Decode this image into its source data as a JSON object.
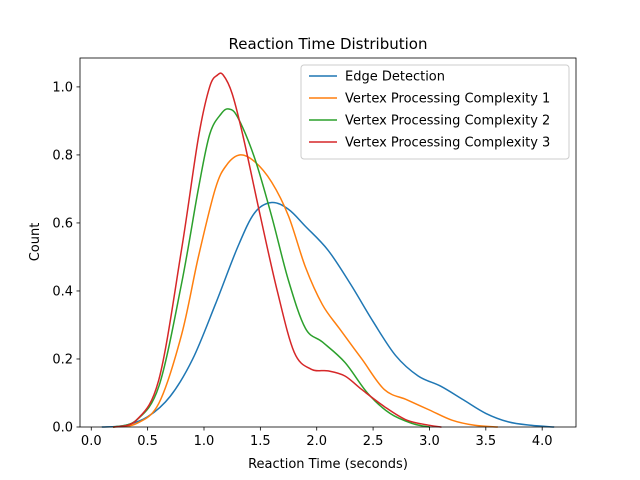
{
  "chart_data": {
    "type": "line",
    "title": "Reaction Time Distribution",
    "xlabel": "Reaction Time (seconds)",
    "ylabel": "Count",
    "xlim": [
      -0.1,
      4.3
    ],
    "ylim": [
      0.0,
      1.085
    ],
    "xticks": [
      "0.0",
      "0.5",
      "1.0",
      "1.5",
      "2.0",
      "2.5",
      "3.0",
      "3.5",
      "4.0"
    ],
    "xtick_values": [
      0.0,
      0.5,
      1.0,
      1.5,
      2.0,
      2.5,
      3.0,
      3.5,
      4.0
    ],
    "yticks": [
      "0.0",
      "0.2",
      "0.4",
      "0.6",
      "0.8",
      "1.0"
    ],
    "ytick_values": [
      0.0,
      0.2,
      0.4,
      0.6,
      0.8,
      1.0
    ],
    "grid": false,
    "legend_position": "top-right",
    "series": [
      {
        "name": "Edge Detection",
        "color": "#1f77b4",
        "x": [
          0.1,
          0.3,
          0.5,
          0.7,
          0.9,
          1.1,
          1.3,
          1.45,
          1.6,
          1.75,
          1.9,
          2.1,
          2.3,
          2.5,
          2.7,
          2.9,
          3.1,
          3.3,
          3.5,
          3.7,
          3.9,
          4.1
        ],
        "y": [
          0.0,
          0.005,
          0.03,
          0.09,
          0.2,
          0.36,
          0.53,
          0.63,
          0.66,
          0.64,
          0.59,
          0.52,
          0.42,
          0.31,
          0.21,
          0.15,
          0.12,
          0.08,
          0.04,
          0.015,
          0.005,
          0.0
        ]
      },
      {
        "name": "Vertex Processing Complexity 1",
        "color": "#ff7f0e",
        "x": [
          0.2,
          0.4,
          0.6,
          0.8,
          0.95,
          1.1,
          1.2,
          1.32,
          1.45,
          1.6,
          1.75,
          1.9,
          2.05,
          2.2,
          2.4,
          2.6,
          2.8,
          3.0,
          3.2,
          3.4,
          3.6
        ],
        "y": [
          0.0,
          0.01,
          0.07,
          0.27,
          0.5,
          0.7,
          0.77,
          0.8,
          0.78,
          0.72,
          0.62,
          0.47,
          0.36,
          0.29,
          0.2,
          0.11,
          0.08,
          0.05,
          0.02,
          0.005,
          0.0
        ]
      },
      {
        "name": "Vertex Processing Complexity 2",
        "color": "#2ca02c",
        "x": [
          0.2,
          0.4,
          0.6,
          0.8,
          0.95,
          1.05,
          1.15,
          1.22,
          1.3,
          1.45,
          1.6,
          1.75,
          1.9,
          2.05,
          2.25,
          2.45,
          2.65,
          2.85,
          3.0
        ],
        "y": [
          0.0,
          0.02,
          0.12,
          0.42,
          0.7,
          0.86,
          0.92,
          0.935,
          0.91,
          0.79,
          0.62,
          0.43,
          0.29,
          0.25,
          0.19,
          0.1,
          0.04,
          0.01,
          0.0
        ]
      },
      {
        "name": "Vertex Processing Complexity 3",
        "color": "#d62728",
        "x": [
          0.2,
          0.4,
          0.6,
          0.8,
          0.95,
          1.05,
          1.12,
          1.17,
          1.25,
          1.35,
          1.5,
          1.65,
          1.8,
          1.95,
          2.1,
          2.25,
          2.4,
          2.6,
          2.8,
          3.0,
          3.1
        ],
        "y": [
          0.0,
          0.02,
          0.14,
          0.52,
          0.85,
          1.0,
          1.035,
          1.035,
          0.98,
          0.85,
          0.62,
          0.4,
          0.22,
          0.17,
          0.165,
          0.15,
          0.11,
          0.06,
          0.02,
          0.005,
          0.0
        ]
      }
    ]
  }
}
